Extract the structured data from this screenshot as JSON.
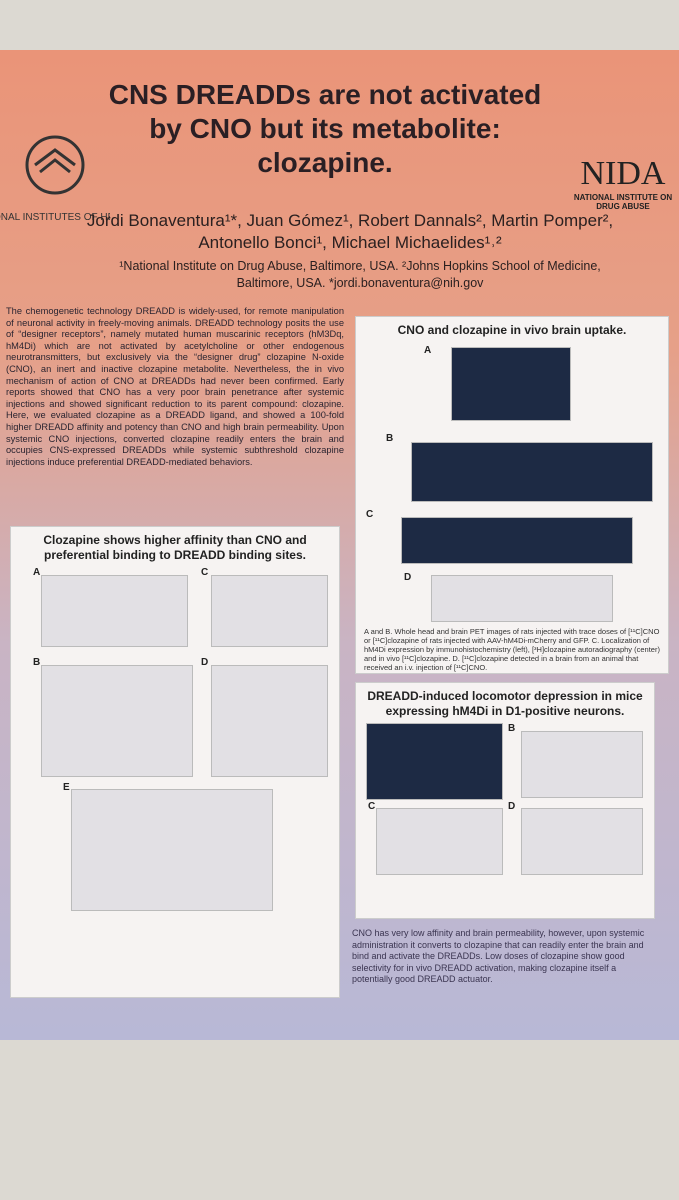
{
  "header": {
    "title": "CNS DREADDs are not activated by CNO but its metabolite: clozapine.",
    "authors": "Jordi Bonaventura¹*, Juan Gómez¹, Robert Dannals², Martin Pomper², Antonello Bonci¹, Michael Michaelides¹˒²",
    "affiliations": "¹National Institute on Drug Abuse, Baltimore, USA. ²Johns Hopkins School of Medicine, Baltimore, USA. *jordi.bonaventura@nih.gov",
    "left_logo": "NATIONAL INSTITUTES OF HEALTH",
    "right_logo": {
      "name": "NIDA",
      "subtitle": "NATIONAL INSTITUTE ON DRUG ABUSE"
    }
  },
  "intro": "The chemogenetic technology DREADD is widely-used, for remote manipulation of neuronal activity in freely-moving animals. DREADD technology posits the use of “designer receptors”, namely mutated human muscarinic receptors (hM3Dq, hM4Di) which are not activated by acetylcholine or other endogenous neurotransmitters, but exclusively via the “designer drug” clozapine N-oxide (CNO), an inert and inactive clozapine metabolite. Nevertheless, the in vivo mechanism of action of CNO at DREADDs had never been confirmed. Early reports showed that CNO has a very poor brain penetrance after systemic injections and showed significant reduction to its parent compound: clozapine. Here, we evaluated clozapine as a DREADD ligand, and showed a 100-fold higher DREADD affinity and potency than CNO and high brain permeability. Upon systemic CNO injections, converted clozapine readily enters the brain and occupies CNS-expressed DREADDs while systemic subthreshold clozapine injections induce preferential DREADD-mediated behaviors.",
  "panels": [
    {
      "title": "Clozapine shows higher affinity than CNO and preferential binding to DREADD binding sites.",
      "labels": [
        "A",
        "B",
        "C",
        "D",
        "E"
      ]
    },
    {
      "title": "CNO and clozapine in vivo brain uptake.",
      "labels": [
        "A",
        "B",
        "C",
        "D"
      ],
      "caption": "A and B. Whole head and brain PET images of rats injected with trace doses of [¹¹C]CNO or [¹¹C]clozapine of rats injected with AAV-hM4Di-mCherry and GFP. C. Localization of hM4Di expression by immunohistochemistry (left), [³H]clozapine autoradiography (center) and in vivo [¹¹C]clozapine. D. [¹¹C]clozapine detected in a brain from an animal that received an i.v. injection of [¹¹C]CNO."
    },
    {
      "title": "DREADD-induced locomotor depression in mice expressing hM4Di in D1-positive neurons.",
      "labels": [
        "A",
        "B",
        "C",
        "D"
      ]
    }
  ],
  "conclusion": "CNO has very low affinity and brain permeability, however, upon systemic administration it converts to clozapine that can readily enter the brain and bind and activate the DREADDs. Low doses of clozapine show good selectivity for in vivo DREADD activation, making clozapine itself a potentially good DREADD actuator."
}
